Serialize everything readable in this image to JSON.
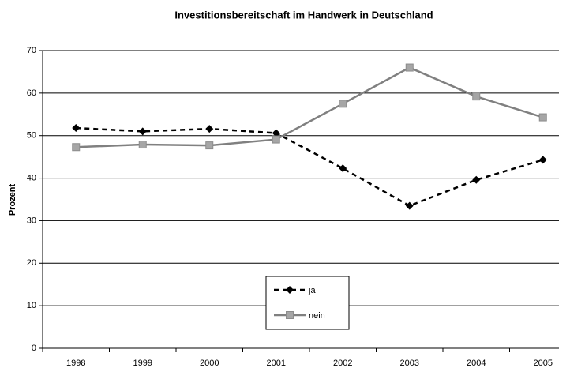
{
  "chart_data": {
    "type": "line",
    "title": "Investitionsbereitschaft im Handwerk in Deutschland",
    "y_label": "Prozent",
    "categories": [
      "1998",
      "1999",
      "2000",
      "2001",
      "2002",
      "2003",
      "2004",
      "2005"
    ],
    "series": [
      {
        "name": "ja",
        "color": "#000000",
        "values": [
          51.8,
          51.0,
          51.6,
          50.6,
          42.3,
          33.5,
          39.6,
          44.3
        ]
      },
      {
        "name": "nein",
        "color": "#808080",
        "values": [
          47.3,
          47.9,
          47.7,
          49.1,
          57.5,
          66.0,
          59.2,
          54.3
        ]
      }
    ],
    "ylim": [
      0,
      70
    ],
    "yticks": [
      0,
      10,
      20,
      30,
      40,
      50,
      60,
      70
    ],
    "grid": true
  }
}
